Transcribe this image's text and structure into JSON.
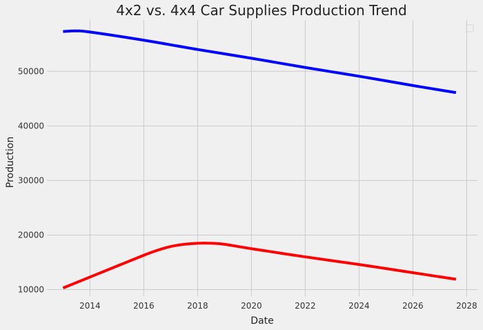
{
  "chart_data": {
    "type": "line",
    "title": "4x2 vs. 4x4 Car Supplies Production Trend",
    "xlabel": "Date",
    "ylabel": "Production",
    "xlim": [
      2012.4,
      2028.4
    ],
    "ylim": [
      8800,
      59400
    ],
    "xticks": [
      2014,
      2016,
      2018,
      2020,
      2022,
      2024,
      2026,
      2028
    ],
    "yticks": [
      10000,
      20000,
      30000,
      40000,
      50000
    ],
    "grid": true,
    "legend": {
      "placement": "top-right",
      "entries": []
    },
    "series": [
      {
        "color": "#0000ff",
        "x": [
          2013.0,
          2013.5,
          2014.0,
          2016.0,
          2018.0,
          2020.0,
          2022.0,
          2024.0,
          2026.0,
          2027.6
        ],
        "y": [
          57300,
          57400,
          57200,
          55700,
          54000,
          52400,
          50700,
          49100,
          47400,
          46100
        ]
      },
      {
        "color": "#ff0000",
        "x": [
          2013.0,
          2014.0,
          2015.0,
          2016.0,
          2016.5,
          2017.0,
          2017.5,
          2018.0,
          2018.5,
          2019.0,
          2020.0,
          2022.0,
          2024.0,
          2026.0,
          2027.6
        ],
        "y": [
          10300,
          12300,
          14300,
          16300,
          17200,
          17900,
          18300,
          18500,
          18500,
          18300,
          17500,
          16000,
          14600,
          13100,
          11900
        ]
      }
    ]
  }
}
